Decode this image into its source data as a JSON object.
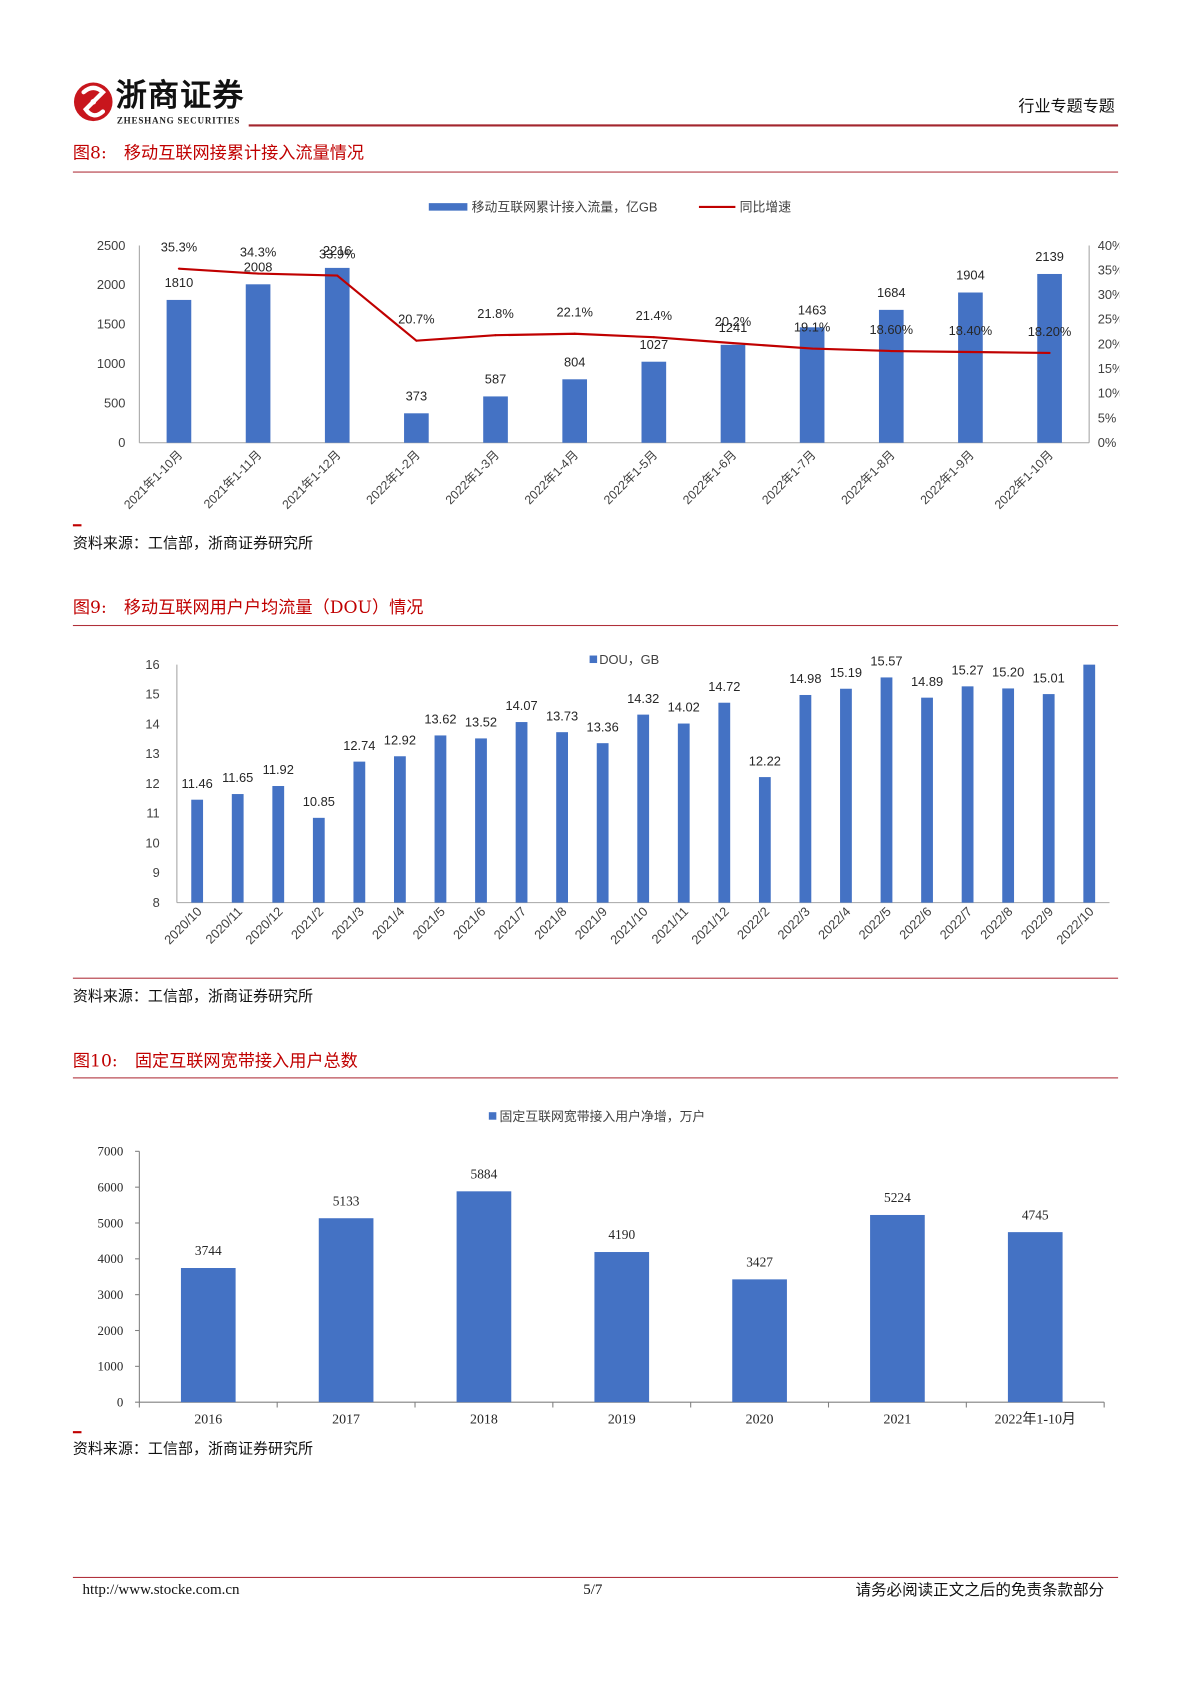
{
  "header": {
    "logo_icon": "zheshang-emblem-icon",
    "logo_name": "浙商证券",
    "logo_english": "ZHESHANG SECURITIES",
    "section_label": "行业专题专题"
  },
  "chart_data": [
    {
      "type": "bar",
      "figure_label": "图8:",
      "title": "移动互联网接累计接入流量情况",
      "categories": [
        "2021年1-10月",
        "2021年1-11月",
        "2021年1-12月",
        "2022年1-2月",
        "2022年1-3月",
        "2022年1-4月",
        "2022年1-5月",
        "2022年1-6月",
        "2022年1-7月",
        "2022年1-8月",
        "2022年1-9月",
        "2022年1-10月"
      ],
      "series": [
        {
          "name": "移动互联网累计接入流量，亿GB",
          "type": "bar",
          "axis": "left",
          "values": [
            1810,
            2008,
            2216,
            373,
            587,
            804,
            1027,
            1241,
            1463,
            1684,
            1904,
            2139
          ],
          "labels": [
            "1810",
            "2008",
            "2216",
            "373",
            "587",
            "804",
            "1027",
            "1241",
            "1463",
            "1684",
            "1904",
            "2139"
          ]
        },
        {
          "name": "同比增速",
          "type": "line",
          "axis": "right",
          "values": [
            35.3,
            34.3,
            33.9,
            20.7,
            21.8,
            22.1,
            21.4,
            20.2,
            19.1,
            18.6,
            18.4,
            18.2
          ],
          "labels": [
            "35.3%",
            "34.3%",
            "33.9%",
            "20.7%",
            "21.8%",
            "22.1%",
            "21.4%",
            "20.2%",
            "19.1%",
            "18.60%",
            "18.40%",
            "18.20%"
          ]
        }
      ],
      "y_left": {
        "min": 0,
        "max": 2500,
        "tick_labels": [
          "0",
          "500",
          "1000",
          "1500",
          "2000",
          "2500"
        ]
      },
      "y_right": {
        "min": 0,
        "max": 40,
        "tick_labels": [
          "0%",
          "5%",
          "10%",
          "15%",
          "20%",
          "25%",
          "30%",
          "35%",
          "40%"
        ]
      },
      "legend": "top",
      "grid": false,
      "colors": {
        "bar": "#4472C4",
        "line": "#C00000"
      },
      "source": "资料来源：工信部，浙商证券研究所"
    },
    {
      "type": "bar",
      "figure_label": "图9:",
      "title": "移动互联网用户户均流量（DOU）情况",
      "categories": [
        "2020/10",
        "2020/11",
        "2020/12",
        "2021/2",
        "2021/3",
        "2021/4",
        "2021/5",
        "2021/6",
        "2021/7",
        "2021/8",
        "2021/9",
        "2021/10",
        "2021/11",
        "2021/12",
        "2022/2",
        "2022/3",
        "2022/4",
        "2022/5",
        "2022/6",
        "2022/7",
        "2022/8",
        "2022/9",
        "2022/10"
      ],
      "series": [
        {
          "name": "DOU，GB",
          "type": "bar",
          "axis": "left",
          "values": [
            11.46,
            11.65,
            11.92,
            10.85,
            12.74,
            12.92,
            13.62,
            13.52,
            14.07,
            13.73,
            13.36,
            14.32,
            14.02,
            14.72,
            12.22,
            14.98,
            15.19,
            15.57,
            14.89,
            15.27,
            15.2,
            15.01,
            16.0
          ],
          "labels": [
            "11.46",
            "11.65",
            "11.92",
            "10.85",
            "12.74",
            "12.92",
            "13.62",
            "13.52",
            "14.07",
            "13.73",
            "13.36",
            "14.32",
            "14.02",
            "14.72",
            "12.22",
            "14.98",
            "15.19",
            "15.57",
            "14.89",
            "15.27",
            "15.20",
            "15.01",
            null
          ]
        }
      ],
      "y_left": {
        "min": 8,
        "max": 16,
        "tick_labels": [
          "8",
          "9",
          "10",
          "11",
          "12",
          "13",
          "14",
          "15",
          "16"
        ]
      },
      "legend": "top",
      "grid": false,
      "colors": {
        "bar": "#4472C4"
      },
      "source": "资料来源：工信部，浙商证券研究所"
    },
    {
      "type": "bar",
      "figure_label": "图10:",
      "title": "固定互联网宽带接入用户总数",
      "categories": [
        "2016",
        "2017",
        "2018",
        "2019",
        "2020",
        "2021",
        "2022年1-10月"
      ],
      "series": [
        {
          "name": "固定互联网宽带接入用户净增，万户",
          "type": "bar",
          "axis": "left",
          "values": [
            3744,
            5133,
            5884,
            4190,
            3427,
            5224,
            4745
          ],
          "labels": [
            "3744",
            "5133",
            "5884",
            "4190",
            "3427",
            "5224",
            "4745"
          ]
        }
      ],
      "y_left": {
        "min": 0,
        "max": 7000,
        "tick_labels": [
          "0",
          "1000",
          "2000",
          "3000",
          "4000",
          "5000",
          "6000",
          "7000"
        ]
      },
      "legend": "top",
      "grid": false,
      "colors": {
        "bar": "#4472C4"
      },
      "source": "资料来源：工信部，浙商证券研究所"
    }
  ],
  "footer": {
    "url": "http://www.stocke.com.cn",
    "page": "5/7",
    "disclaimer": "请务必阅读正文之后的免责条款部分"
  }
}
